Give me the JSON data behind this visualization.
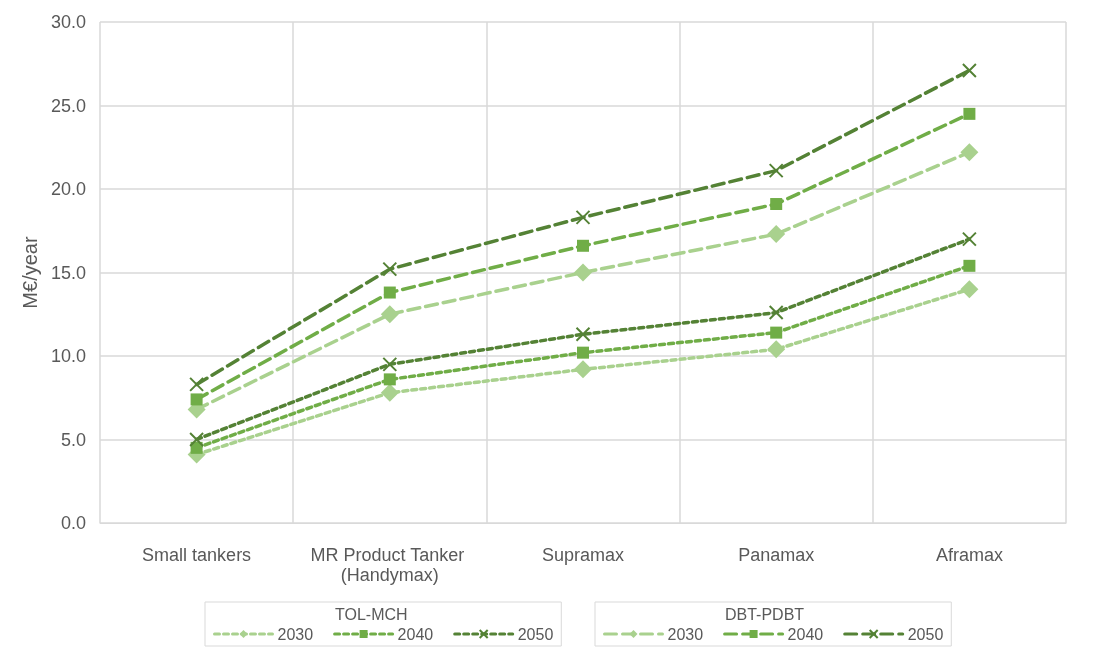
{
  "chart_data": {
    "type": "line",
    "ylabel": "M€/year",
    "categories": [
      "Small tankers",
      "MR Product Tanker (Handymax)",
      "Supramax",
      "Panamax",
      "Aframax"
    ],
    "series": [
      {
        "name": "2030",
        "color": "#a9d18e",
        "marker": "diamond",
        "line_style": "dotted",
        "values": [
          4.1,
          7.8,
          9.2,
          10.4,
          14.0
        ]
      },
      {
        "name": "2040",
        "color": "#70ad47",
        "marker": "square",
        "line_style": "dotted",
        "values": [
          4.5,
          8.6,
          10.2,
          11.4,
          15.4
        ]
      },
      {
        "name": "2050",
        "color": "#548235",
        "marker": "cross",
        "line_style": "dotted",
        "values": [
          5.0,
          9.5,
          11.3,
          12.6,
          17.0
        ]
      },
      {
        "name": "2030",
        "color": "#a9d18e",
        "marker": "diamond",
        "line_style": "dashed",
        "values": [
          6.8,
          12.5,
          15.0,
          17.3,
          22.2
        ]
      },
      {
        "name": "2040",
        "color": "#70ad47",
        "marker": "square",
        "line_style": "dashed",
        "values": [
          7.4,
          13.8,
          16.6,
          19.1,
          24.5
        ]
      },
      {
        "name": "2050",
        "color": "#548235",
        "marker": "cross",
        "line_style": "dashed",
        "values": [
          8.3,
          15.2,
          18.3,
          21.1,
          27.1
        ]
      }
    ],
    "annotations": [
      "TOL-MCH",
      "DBT-PDBT"
    ],
    "ylim": [
      0,
      30
    ],
    "yticks": [
      {
        "value": 0,
        "label": "0.0"
      },
      {
        "value": 5,
        "label": "5.0"
      },
      {
        "value": 10,
        "label": "10.0"
      },
      {
        "value": 15,
        "label": "15.0"
      },
      {
        "value": 20,
        "label": "20.0"
      },
      {
        "value": 25,
        "label": "25.0"
      },
      {
        "value": 30,
        "label": "30.0"
      }
    ],
    "grid": true,
    "legend": "bottom"
  }
}
